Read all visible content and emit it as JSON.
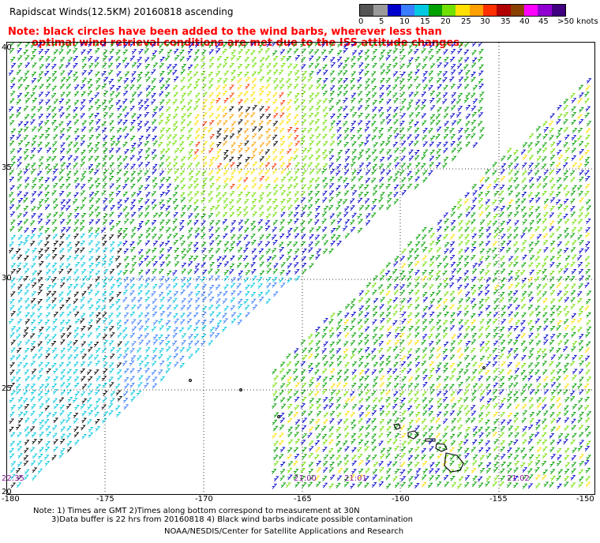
{
  "title": "Rapidscat Winds(12.5KM) 20160818 ascending",
  "note": {
    "line1": "Note: black circles have been added to the wind barbs, wherever less than",
    "line2": "optimal wind retrieval conditions are met due to the ISS attitude changes."
  },
  "scale": {
    "colors": [
      "#555555",
      "#9a9a9a",
      "#0000cc",
      "#3a7dff",
      "#00c8e0",
      "#00a000",
      "#70e000",
      "#ffe000",
      "#ffa000",
      "#ff3000",
      "#b00000",
      "#8a4000",
      "#ff00ff",
      "#9000d0",
      "#400080"
    ],
    "labels": [
      "0",
      "5",
      "10",
      "15",
      "20",
      "25",
      "30",
      "35",
      "40",
      "45",
      ">50 knots"
    ]
  },
  "lat_labels": [
    "40",
    "35",
    "30",
    "25",
    "20"
  ],
  "lon_labels": [
    "-180",
    "-175",
    "-170",
    "-165",
    "-160",
    "-155",
    "-150"
  ],
  "time_labels": [
    "22:35",
    "21:00",
    "21:01",
    "21:02"
  ],
  "footnote": {
    "line1": "Note: 1) Times are GMT 2)Times along bottom correspond to measurement at 30N",
    "line2": "3)Data buffer is 22 hrs from 20160818 4) Black wind barbs indicate possible contamination"
  },
  "credit": "NOAA/NESDIS/Center for Satellite Applications and Research"
}
